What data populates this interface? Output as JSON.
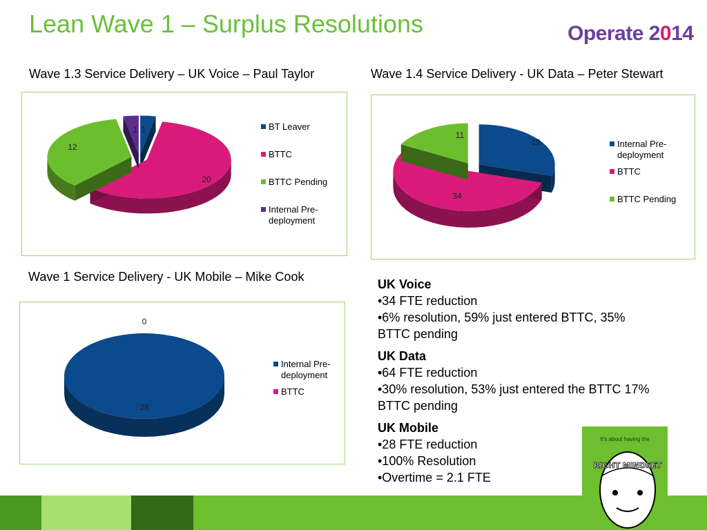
{
  "slide": {
    "title": "Lean Wave 1 – Surplus Resolutions",
    "logo": {
      "text_main": "Operate 2",
      "text_accent": "0",
      "text_end": "14"
    }
  },
  "colors": {
    "green": "#6bbf3a",
    "navy": "#0b4a8c",
    "magenta": "#d81b7a",
    "chart_green": "#6cbf2c",
    "purple": "#5b2d8e"
  },
  "headings": {
    "voice": "Wave 1.3 Service Delivery – UK Voice – Paul Taylor",
    "data": "Wave 1.4 Service Delivery - UK Data – Peter Stewart",
    "mobile": "Wave 1 Service Delivery - UK Mobile – Mike Cook"
  },
  "chart_data": [
    {
      "type": "pie",
      "categories": [
        "BT Leaver",
        "BTTC",
        "BTTC Pending",
        "Internal Pre-deployment"
      ],
      "values": [
        1,
        20,
        12,
        1
      ],
      "value_labels": [
        "1",
        "20",
        "12",
        "1"
      ],
      "legend": [
        "BT Leaver",
        "BTTC",
        "BTTC Pending",
        "Internal Pre-\ndeployment"
      ],
      "legend_position": "right",
      "colors": [
        "#0b4a8c",
        "#d81b7a",
        "#6cbf2c",
        "#5b2d8e"
      ]
    },
    {
      "type": "pie",
      "categories": [
        "Internal Pre-deployment",
        "BTTC",
        "BTTC Pending"
      ],
      "values": [
        19,
        34,
        11
      ],
      "value_labels": [
        "19",
        "34",
        "11"
      ],
      "legend": [
        "Internal Pre-\ndeployment",
        "BTTC",
        "BTTC Pending"
      ],
      "legend_position": "right",
      "colors": [
        "#0b4a8c",
        "#d81b7a",
        "#6cbf2c"
      ]
    },
    {
      "type": "pie",
      "categories": [
        "Internal Pre-deployment",
        "BTTC"
      ],
      "values": [
        28,
        0
      ],
      "value_labels": [
        "28",
        "0"
      ],
      "legend": [
        "Internal Pre-\ndeployment",
        "BTTC"
      ],
      "legend_position": "right",
      "colors": [
        "#0b4a8c",
        "#d81b7a"
      ]
    }
  ],
  "summary": [
    {
      "heading": "UK Voice",
      "lines": [
        "•34 FTE reduction",
        "•6% resolution, 59% just entered BTTC, 35% BTTC pending"
      ]
    },
    {
      "heading": "UK Data",
      "lines": [
        "•64 FTE reduction",
        "•30% resolution, 53% just entered the BTTC 17% BTTC pending"
      ]
    },
    {
      "heading": "UK Mobile",
      "lines": [
        "•28 FTE reduction",
        "•100% Resolution",
        "•Overtime = 2.1 FTE"
      ]
    }
  ],
  "mindset_card": {
    "caption": "It's about having the",
    "word": "RIGHT MINDSET"
  }
}
